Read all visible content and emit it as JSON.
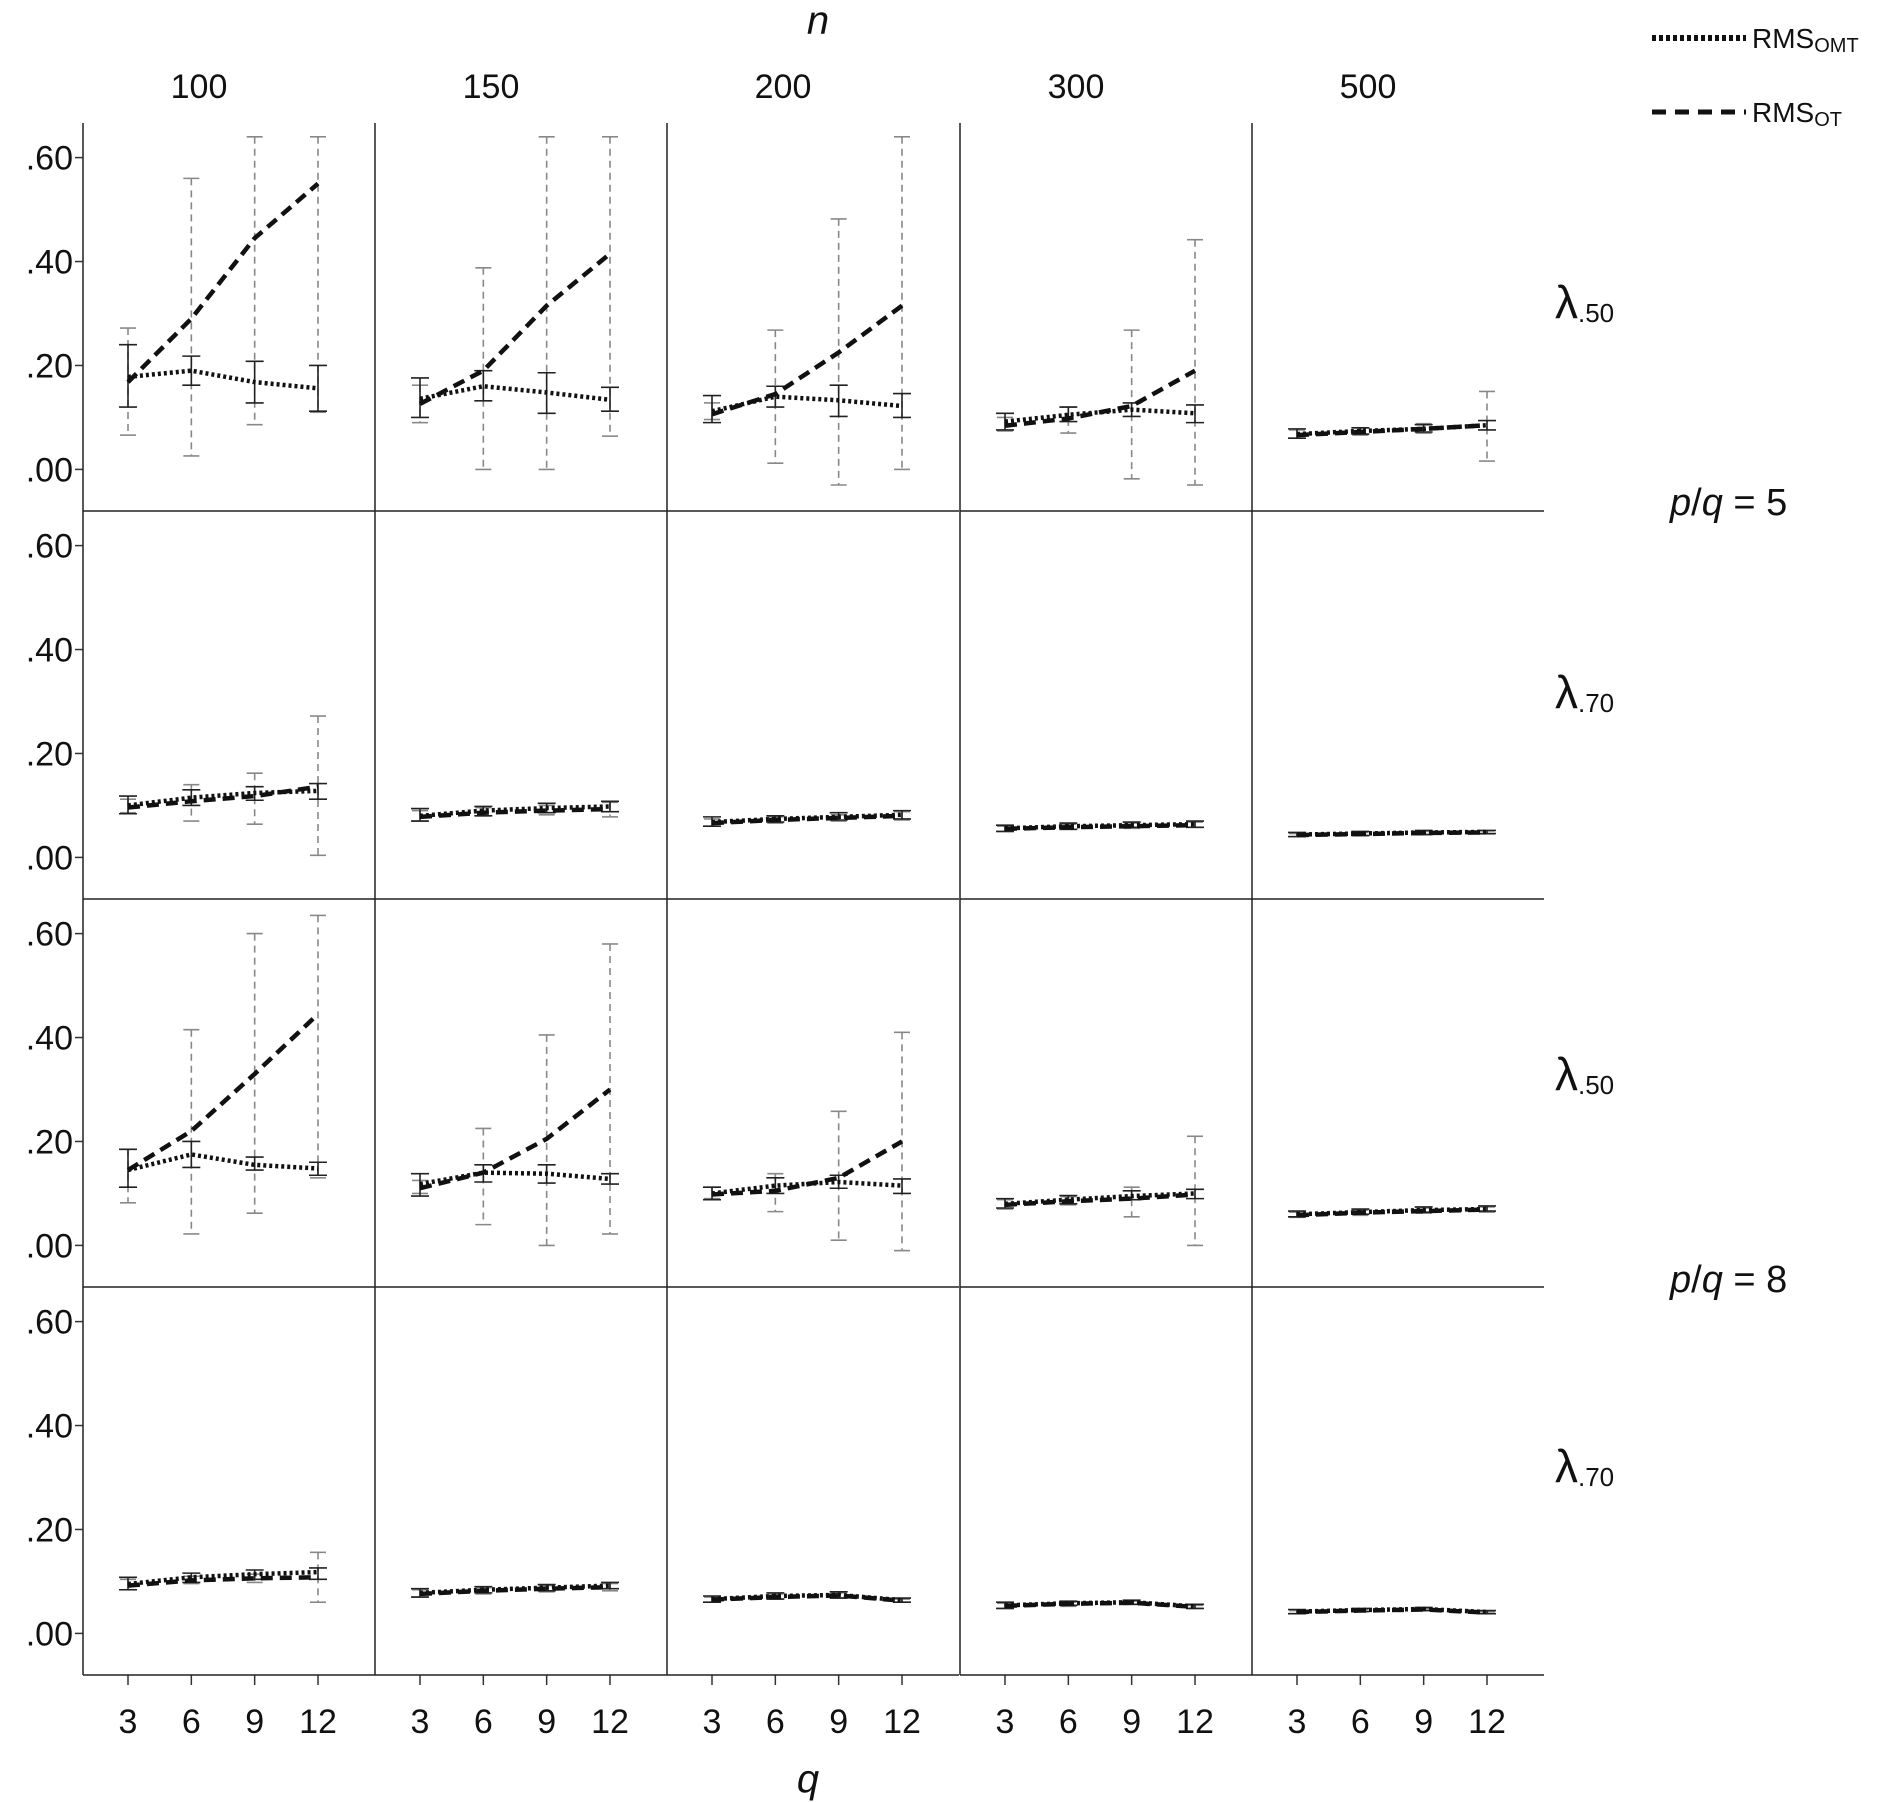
{
  "chart_data": {
    "type": "line",
    "top_label": "n",
    "bottom_label": "q",
    "column_headers": [
      "100",
      "150",
      "200",
      "300",
      "500"
    ],
    "x_ticks": [
      3,
      6,
      9,
      12
    ],
    "y_ticks": [
      ".00",
      ".20",
      ".40",
      ".60"
    ],
    "y_tick_values": [
      0,
      0.2,
      0.4,
      0.6
    ],
    "ylim": [
      -0.03,
      0.63
    ],
    "legend": [
      {
        "key": "omt",
        "main": "RMS",
        "sub": "OMT",
        "style": "dotted"
      },
      {
        "key": "ot",
        "main": "RMS",
        "sub": "OT",
        "style": "dashed"
      }
    ],
    "row_labels": [
      {
        "symbol": "λ",
        "sub": ".50"
      },
      {
        "symbol": "λ",
        "sub": ".70"
      },
      {
        "symbol": "λ",
        "sub": ".50"
      },
      {
        "symbol": "λ",
        "sub": ".70"
      }
    ],
    "pq_labels": [
      {
        "p": "p",
        "slash": "/",
        "q": "q",
        "rest": " = 5"
      },
      {
        "p": "p",
        "slash": "/",
        "q": "q",
        "rest": " = 8"
      }
    ],
    "panels": [
      [
        {
          "omt": [
            0.178,
            0.19,
            0.168,
            0.156
          ],
          "omt_err": [
            [
              0.12,
              0.24
            ],
            [
              0.162,
              0.218
            ],
            [
              0.128,
              0.208
            ],
            [
              0.112,
              0.2
            ]
          ],
          "ot": [
            0.168,
            0.29,
            0.445,
            0.55
          ],
          "ot_err": [
            [
              0.066,
              0.272
            ],
            [
              0.026,
              0.56
            ],
            [
              0.086,
              0.64
            ],
            [
              0.11,
              0.64
            ]
          ]
        },
        {
          "omt": [
            0.136,
            0.16,
            0.148,
            0.134
          ],
          "omt_err": [
            [
              0.1,
              0.176
            ],
            [
              0.132,
              0.19
            ],
            [
              0.108,
              0.186
            ],
            [
              0.112,
              0.158
            ]
          ],
          "ot": [
            0.126,
            0.19,
            0.315,
            0.415
          ],
          "ot_err": [
            [
              0.09,
              0.162
            ],
            [
              0.0,
              0.388
            ],
            [
              0.0,
              0.64
            ],
            [
              0.064,
              0.64
            ]
          ]
        },
        {
          "omt": [
            0.112,
            0.14,
            0.133,
            0.122
          ],
          "omt_err": [
            [
              0.09,
              0.142
            ],
            [
              0.12,
              0.16
            ],
            [
              0.102,
              0.162
            ],
            [
              0.1,
              0.146
            ]
          ],
          "ot": [
            0.106,
            0.145,
            0.225,
            0.315
          ],
          "ot_err": [
            [
              0.096,
              0.128
            ],
            [
              0.012,
              0.268
            ],
            [
              -0.03,
              0.482
            ],
            [
              0.0,
              0.64
            ]
          ]
        },
        {
          "omt": [
            0.092,
            0.105,
            0.115,
            0.108
          ],
          "omt_err": [
            [
              0.076,
              0.108
            ],
            [
              0.092,
              0.12
            ],
            [
              0.102,
              0.128
            ],
            [
              0.09,
              0.124
            ]
          ],
          "ot": [
            0.084,
            0.098,
            0.122,
            0.19
          ],
          "ot_err": [
            [
              0.074,
              0.1
            ],
            [
              0.07,
              0.12
            ],
            [
              -0.018,
              0.268
            ],
            [
              -0.03,
              0.442
            ]
          ]
        },
        {
          "omt": [
            0.068,
            0.074,
            0.078,
            0.085
          ],
          "omt_err": [
            [
              0.06,
              0.078
            ],
            [
              0.068,
              0.08
            ],
            [
              0.072,
              0.086
            ],
            [
              0.076,
              0.094
            ]
          ],
          "ot": [
            0.066,
            0.072,
            0.078,
            0.085
          ],
          "ot_err": [
            [
              0.06,
              0.076
            ],
            [
              0.066,
              0.08
            ],
            [
              0.07,
              0.088
            ],
            [
              0.016,
              0.15
            ]
          ]
        }
      ],
      [
        {
          "omt": [
            0.1,
            0.115,
            0.124,
            0.128
          ],
          "omt_err": [
            [
              0.084,
              0.118
            ],
            [
              0.1,
              0.13
            ],
            [
              0.11,
              0.136
            ],
            [
              0.112,
              0.142
            ]
          ],
          "ot": [
            0.096,
            0.108,
            0.118,
            0.136
          ],
          "ot_err": [
            [
              0.086,
              0.112
            ],
            [
              0.07,
              0.14
            ],
            [
              0.064,
              0.162
            ],
            [
              0.004,
              0.272
            ]
          ]
        },
        {
          "omt": [
            0.08,
            0.09,
            0.095,
            0.098
          ],
          "omt_err": [
            [
              0.07,
              0.094
            ],
            [
              0.08,
              0.098
            ],
            [
              0.086,
              0.104
            ],
            [
              0.088,
              0.108
            ]
          ],
          "ot": [
            0.078,
            0.086,
            0.09,
            0.093
          ],
          "ot_err": [
            [
              0.07,
              0.09
            ],
            [
              0.08,
              0.096
            ],
            [
              0.082,
              0.1
            ],
            [
              0.078,
              0.106
            ]
          ]
        },
        {
          "omt": [
            0.068,
            0.074,
            0.078,
            0.082
          ],
          "omt_err": [
            [
              0.06,
              0.078
            ],
            [
              0.068,
              0.08
            ],
            [
              0.072,
              0.086
            ],
            [
              0.074,
              0.09
            ]
          ],
          "ot": [
            0.066,
            0.072,
            0.076,
            0.08
          ],
          "ot_err": [
            [
              0.06,
              0.074
            ],
            [
              0.066,
              0.078
            ],
            [
              0.07,
              0.082
            ],
            [
              0.072,
              0.088
            ]
          ]
        },
        {
          "omt": [
            0.056,
            0.06,
            0.062,
            0.064
          ],
          "omt_err": [
            [
              0.05,
              0.062
            ],
            [
              0.054,
              0.066
            ],
            [
              0.058,
              0.068
            ],
            [
              0.058,
              0.07
            ]
          ],
          "ot": [
            0.055,
            0.058,
            0.06,
            0.062
          ],
          "ot_err": [
            [
              0.05,
              0.06
            ],
            [
              0.054,
              0.064
            ],
            [
              0.056,
              0.066
            ],
            [
              0.058,
              0.068
            ]
          ]
        },
        {
          "omt": [
            0.044,
            0.046,
            0.048,
            0.049
          ],
          "omt_err": [
            [
              0.04,
              0.048
            ],
            [
              0.042,
              0.05
            ],
            [
              0.044,
              0.052
            ],
            [
              0.046,
              0.052
            ]
          ],
          "ot": [
            0.043,
            0.045,
            0.047,
            0.048
          ],
          "ot_err": [
            [
              0.04,
              0.046
            ],
            [
              0.042,
              0.048
            ],
            [
              0.044,
              0.05
            ],
            [
              0.045,
              0.051
            ]
          ]
        }
      ],
      [
        {
          "omt": [
            0.145,
            0.175,
            0.155,
            0.148
          ],
          "omt_err": [
            [
              0.112,
              0.185
            ],
            [
              0.15,
              0.2
            ],
            [
              0.145,
              0.17
            ],
            [
              0.135,
              0.16
            ]
          ],
          "ot": [
            0.145,
            0.22,
            0.33,
            0.445
          ],
          "ot_err": [
            [
              0.082,
              0.185
            ],
            [
              0.022,
              0.415
            ],
            [
              0.062,
              0.6
            ],
            [
              0.13,
              0.635
            ]
          ]
        },
        {
          "omt": [
            0.118,
            0.14,
            0.138,
            0.128
          ],
          "omt_err": [
            [
              0.095,
              0.138
            ],
            [
              0.122,
              0.155
            ],
            [
              0.12,
              0.155
            ],
            [
              0.118,
              0.138
            ]
          ],
          "ot": [
            0.11,
            0.14,
            0.205,
            0.3
          ],
          "ot_err": [
            [
              0.1,
              0.125
            ],
            [
              0.04,
              0.225
            ],
            [
              0.0,
              0.405
            ],
            [
              0.022,
              0.58
            ]
          ]
        },
        {
          "omt": [
            0.1,
            0.115,
            0.122,
            0.115
          ],
          "omt_err": [
            [
              0.088,
              0.112
            ],
            [
              0.1,
              0.13
            ],
            [
              0.11,
              0.135
            ],
            [
              0.1,
              0.128
            ]
          ],
          "ot": [
            0.098,
            0.105,
            0.13,
            0.2
          ],
          "ot_err": [
            [
              0.09,
              0.112
            ],
            [
              0.065,
              0.138
            ],
            [
              0.01,
              0.258
            ],
            [
              -0.01,
              0.41
            ]
          ]
        },
        {
          "omt": [
            0.08,
            0.088,
            0.095,
            0.1
          ],
          "omt_err": [
            [
              0.072,
              0.09
            ],
            [
              0.08,
              0.096
            ],
            [
              0.088,
              0.105
            ],
            [
              0.09,
              0.108
            ]
          ],
          "ot": [
            0.078,
            0.085,
            0.09,
            0.098
          ],
          "ot_err": [
            [
              0.07,
              0.088
            ],
            [
              0.078,
              0.094
            ],
            [
              0.055,
              0.112
            ],
            [
              0.0,
              0.21
            ]
          ]
        },
        {
          "omt": [
            0.06,
            0.064,
            0.068,
            0.07
          ],
          "omt_err": [
            [
              0.055,
              0.066
            ],
            [
              0.06,
              0.07
            ],
            [
              0.064,
              0.074
            ],
            [
              0.066,
              0.076
            ]
          ],
          "ot": [
            0.058,
            0.063,
            0.066,
            0.069
          ],
          "ot_err": [
            [
              0.054,
              0.064
            ],
            [
              0.058,
              0.068
            ],
            [
              0.062,
              0.072
            ],
            [
              0.064,
              0.074
            ]
          ]
        }
      ],
      [
        {
          "omt": [
            0.095,
            0.108,
            0.114,
            0.118
          ],
          "omt_err": [
            [
              0.084,
              0.108
            ],
            [
              0.098,
              0.116
            ],
            [
              0.104,
              0.122
            ],
            [
              0.104,
              0.126
            ]
          ],
          "ot": [
            0.092,
            0.102,
            0.106,
            0.108
          ],
          "ot_err": [
            [
              0.084,
              0.104
            ],
            [
              0.096,
              0.11
            ],
            [
              0.098,
              0.114
            ],
            [
              0.06,
              0.156
            ]
          ]
        },
        {
          "omt": [
            0.078,
            0.084,
            0.088,
            0.092
          ],
          "omt_err": [
            [
              0.07,
              0.086
            ],
            [
              0.078,
              0.09
            ],
            [
              0.082,
              0.094
            ],
            [
              0.086,
              0.098
            ]
          ],
          "ot": [
            0.076,
            0.082,
            0.086,
            0.089
          ],
          "ot_err": [
            [
              0.07,
              0.084
            ],
            [
              0.076,
              0.088
            ],
            [
              0.08,
              0.092
            ],
            [
              0.082,
              0.096
            ]
          ]
        },
        {
          "omt": [
            0.066,
            0.072,
            0.074,
            0.064
          ],
          "omt_err": [
            [
              0.06,
              0.072
            ],
            [
              0.066,
              0.078
            ],
            [
              0.068,
              0.08
            ],
            [
              0.06,
              0.068
            ]
          ],
          "ot": [
            0.065,
            0.07,
            0.073,
            0.063
          ],
          "ot_err": [
            [
              0.06,
              0.07
            ],
            [
              0.066,
              0.076
            ],
            [
              0.068,
              0.078
            ],
            [
              0.06,
              0.066
            ]
          ]
        },
        {
          "omt": [
            0.054,
            0.058,
            0.06,
            0.052
          ],
          "omt_err": [
            [
              0.048,
              0.06
            ],
            [
              0.054,
              0.062
            ],
            [
              0.056,
              0.064
            ],
            [
              0.048,
              0.056
            ]
          ],
          "ot": [
            0.053,
            0.057,
            0.059,
            0.051
          ],
          "ot_err": [
            [
              0.048,
              0.058
            ],
            [
              0.052,
              0.06
            ],
            [
              0.056,
              0.062
            ],
            [
              0.048,
              0.054
            ]
          ]
        },
        {
          "omt": [
            0.042,
            0.045,
            0.047,
            0.041
          ],
          "omt_err": [
            [
              0.038,
              0.046
            ],
            [
              0.042,
              0.048
            ],
            [
              0.044,
              0.05
            ],
            [
              0.038,
              0.044
            ]
          ],
          "ot": [
            0.041,
            0.044,
            0.046,
            0.04
          ],
          "ot_err": [
            [
              0.038,
              0.044
            ],
            [
              0.042,
              0.046
            ],
            [
              0.044,
              0.048
            ],
            [
              0.038,
              0.042
            ]
          ]
        }
      ]
    ]
  }
}
